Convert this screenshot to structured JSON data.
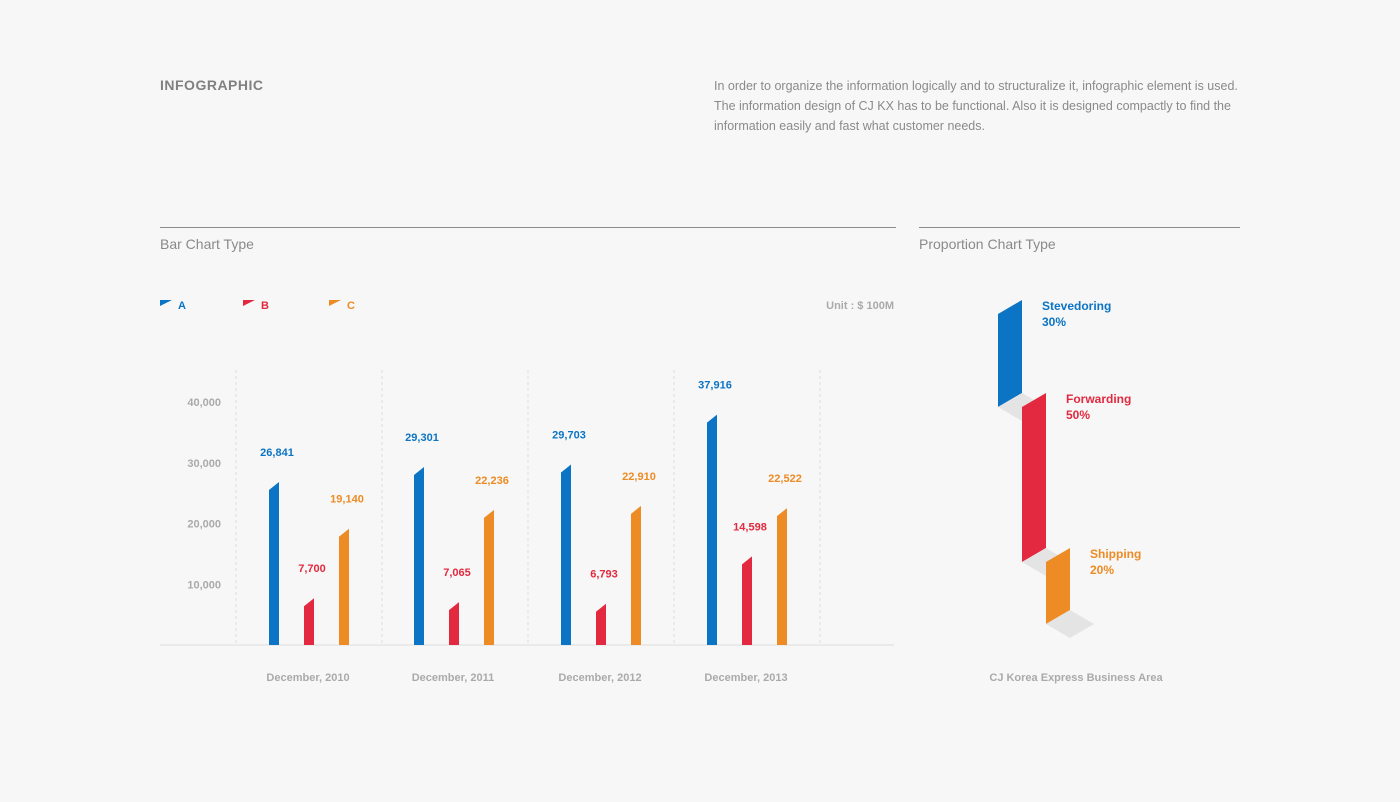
{
  "header": {
    "title": "INFOGRAPHIC",
    "intro": "In order to organize the information logically and to structuralize it, infographic element is used. The information design of CJ KX has to be functional. Also it is designed compactly to find the information easily and fast what customer needs."
  },
  "bar_panel": {
    "title": "Bar Chart Type"
  },
  "proportion_panel": {
    "title": "Proportion Chart Type"
  },
  "colors": {
    "A": "#0b74c4",
    "B": "#e2293f",
    "C": "#ed8b24",
    "axis": "#dddddd",
    "rule": "#8c8c8c"
  },
  "chart_data": [
    {
      "type": "bar",
      "unit": "Unit : $ 100M",
      "categories": [
        "December, 2010",
        "December, 2011",
        "December, 2012",
        "December, 2013"
      ],
      "series": [
        {
          "name": "A",
          "values": [
            26841,
            29301,
            29703,
            37916
          ],
          "labels": [
            "26,841",
            "29,301",
            "29,703",
            "37,916"
          ]
        },
        {
          "name": "B",
          "values": [
            7700,
            7065,
            6793,
            14598
          ],
          "labels": [
            "7,700",
            "7,065",
            "6,793",
            "14,598"
          ]
        },
        {
          "name": "C",
          "values": [
            19140,
            22236,
            22910,
            22522
          ],
          "labels": [
            "19,140",
            "22,236",
            "22,910",
            "22,522"
          ]
        }
      ],
      "yticks": [
        10000,
        20000,
        30000,
        40000
      ],
      "ytick_labels": [
        "10,000",
        "20,000",
        "30,000",
        "40,000"
      ],
      "ylim": [
        0,
        45000
      ],
      "legend": "top-left",
      "grid": "vertical dashed separators"
    },
    {
      "type": "pie",
      "style": "isometric proportion bars",
      "caption": "CJ Korea Express Business Area",
      "slices": [
        {
          "name": "Stevedoring",
          "label": "30%",
          "value": 30
        },
        {
          "name": "Forwarding",
          "label": "50%",
          "value": 50
        },
        {
          "name": "Shipping",
          "label": "20%",
          "value": 20
        }
      ]
    }
  ]
}
